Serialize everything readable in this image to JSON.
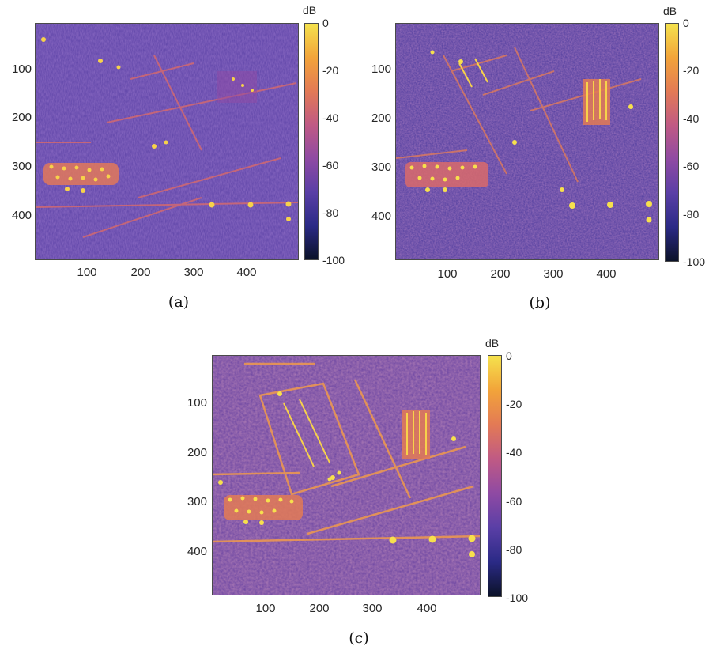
{
  "colormap": {
    "stops": [
      "#0b1228",
      "#2b2a86",
      "#5a3fa6",
      "#8f4aa3",
      "#c05a84",
      "#e37a55",
      "#f2a43a",
      "#f5e24d"
    ],
    "unit": "dB",
    "ticks": [
      "0",
      "-20",
      "-40",
      "-60",
      "-80",
      "-100"
    ]
  },
  "axes": {
    "y_ticks": [
      "100",
      "200",
      "300",
      "400"
    ],
    "x_ticks": [
      "100",
      "200",
      "300",
      "400"
    ]
  },
  "panels": [
    {
      "caption": "(a)"
    },
    {
      "caption": "(b)"
    },
    {
      "caption": "(c)"
    }
  ]
}
